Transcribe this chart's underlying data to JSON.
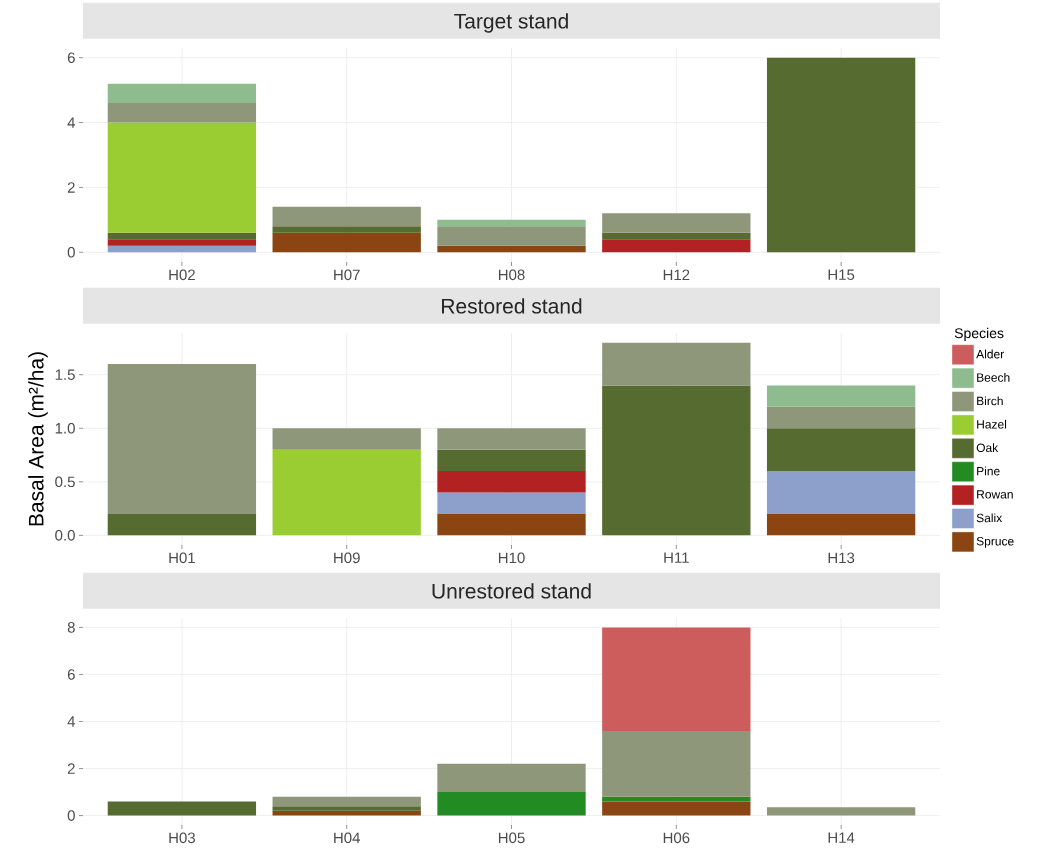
{
  "chart_data": [
    {
      "type": "bar",
      "title": "Target stand",
      "stacked": true,
      "grid": true,
      "categories": [
        "H02",
        "H07",
        "H08",
        "H12",
        "H15"
      ],
      "ylim": [
        -0.3,
        6.3
      ],
      "yticks": [
        0,
        2,
        4,
        6
      ],
      "series": [
        {
          "color": "#8b4513",
          "values": [
            null,
            0.6,
            0.2,
            null,
            null
          ]
        },
        {
          "color": "#8da0cb",
          "values": [
            0.2,
            null,
            null,
            null,
            null
          ]
        },
        {
          "color": "#b22222",
          "values": [
            0.2,
            null,
            null,
            0.4,
            null
          ]
        },
        {
          "color": "#556b2f",
          "values": [
            0.2,
            0.2,
            null,
            0.2,
            6
          ]
        },
        {
          "color": "#9acd32",
          "values": [
            3.4,
            null,
            null,
            null,
            null
          ]
        },
        {
          "color": "#8f977a",
          "values": [
            0.6,
            0.6,
            0.6,
            0.6,
            null
          ]
        },
        {
          "color": "#8fbc8f",
          "values": [
            0.6,
            null,
            0.2,
            null,
            null
          ]
        }
      ]
    },
    {
      "type": "bar",
      "title": "Restored stand",
      "stacked": true,
      "grid": true,
      "ylabel": "Basal Area (m²/ha)",
      "legend": "right",
      "legend_title": "Species",
      "categories": [
        "H01",
        "H09",
        "H10",
        "H11",
        "H13"
      ],
      "ylim": [
        -0.09,
        1.89
      ],
      "yticks": [
        {
          "value": 0,
          "label": "0.0"
        },
        {
          "value": 0.5,
          "label": "0.5"
        },
        {
          "value": 1,
          "label": "1.0"
        },
        {
          "value": 1.5,
          "label": "1.5"
        }
      ],
      "series": [
        {
          "name": "Spruce",
          "color": "#8b4513",
          "values": [
            null,
            null,
            0.2,
            null,
            0.2
          ]
        },
        {
          "name": "Salix",
          "color": "#8da0cb",
          "values": [
            null,
            null,
            0.2,
            null,
            0.4
          ]
        },
        {
          "name": "Rowan",
          "color": "#b22222",
          "values": [
            null,
            null,
            0.2,
            null,
            null
          ]
        },
        {
          "name": "Pine",
          "color": "#228b22",
          "values": [
            null,
            null,
            null,
            null,
            null
          ]
        },
        {
          "name": "Oak",
          "color": "#556b2f",
          "values": [
            0.2,
            null,
            0.2,
            1.4,
            0.4
          ]
        },
        {
          "name": "Hazel",
          "color": "#9acd32",
          "values": [
            null,
            0.8,
            null,
            null,
            null
          ]
        },
        {
          "name": "Birch",
          "color": "#8f977a",
          "values": [
            1.4,
            0.2,
            0.2,
            0.4,
            0.2
          ]
        },
        {
          "name": "Beech",
          "color": "#8fbc8f",
          "values": [
            null,
            null,
            null,
            null,
            0.2
          ]
        },
        {
          "name": "Alder",
          "color": "#cd5c5c",
          "values": [
            null,
            null,
            null,
            null,
            null
          ]
        }
      ]
    },
    {
      "type": "bar",
      "title": "Unrestored stand",
      "stacked": true,
      "grid": true,
      "categories": [
        "H03",
        "H04",
        "H05",
        "H06",
        "H14"
      ],
      "ylim": [
        -0.4,
        8.4
      ],
      "yticks": [
        0,
        2,
        4,
        6,
        8
      ],
      "series": [
        {
          "color": "#8b4513",
          "values": [
            null,
            0.2,
            null,
            0.6,
            null
          ]
        },
        {
          "color": "#228b22",
          "values": [
            null,
            null,
            1.0,
            0.2,
            null
          ]
        },
        {
          "color": "#556b2f",
          "values": [
            0.6,
            0.2,
            null,
            null,
            null
          ]
        },
        {
          "color": "#8f977a",
          "values": [
            null,
            0.4,
            1.2,
            2.8,
            0.35
          ]
        },
        {
          "color": "#cd5c5c",
          "values": [
            null,
            null,
            null,
            4.4,
            null
          ]
        }
      ]
    }
  ]
}
